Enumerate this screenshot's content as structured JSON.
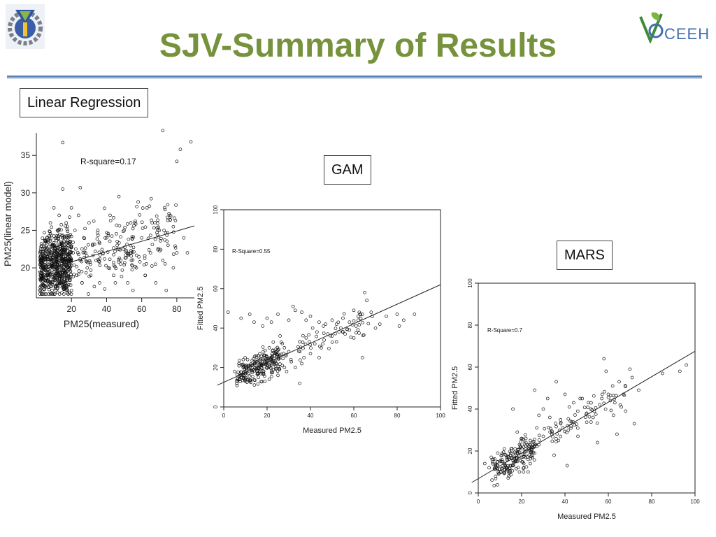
{
  "slide": {
    "title": "SJV-Summary of Results",
    "logo_right_text": "CEEH"
  },
  "colors": {
    "title": "#76923c",
    "rule": "#5b82b5"
  },
  "labels": {
    "lr": "Linear Regression",
    "gam": "GAM",
    "mars": "MARS"
  },
  "chart_data": [
    {
      "id": "lr",
      "type": "scatter",
      "title": "",
      "annotation": "R-square=0.17",
      "xlabel": "PM25(measured)",
      "ylabel": "PM25(linear model)",
      "xlim": [
        0,
        90
      ],
      "ylim": [
        16,
        38
      ],
      "xticks": [
        20,
        40,
        60,
        80
      ],
      "yticks": [
        20,
        25,
        30,
        35
      ],
      "fit_line": [
        [
          1,
          19.5
        ],
        [
          90,
          25.6
        ]
      ],
      "n_points": 900,
      "points": [
        [
          2,
          17
        ],
        [
          3,
          18.5
        ],
        [
          4,
          20
        ],
        [
          5,
          22
        ],
        [
          5,
          17.5
        ],
        [
          6,
          24
        ],
        [
          7,
          19
        ],
        [
          8,
          21
        ],
        [
          8,
          26
        ],
        [
          9,
          17
        ],
        [
          10,
          23
        ],
        [
          10,
          28
        ],
        [
          11,
          20
        ],
        [
          12,
          18
        ],
        [
          12,
          25
        ],
        [
          13,
          22
        ],
        [
          13,
          27
        ],
        [
          14,
          19
        ],
        [
          15,
          24
        ],
        [
          15,
          30.5
        ],
        [
          16,
          21
        ],
        [
          17,
          17.5
        ],
        [
          17,
          26
        ],
        [
          18,
          23
        ],
        [
          19,
          20
        ],
        [
          20,
          28
        ],
        [
          20,
          17
        ],
        [
          21,
          22
        ],
        [
          22,
          25
        ],
        [
          23,
          19
        ],
        [
          24,
          27
        ],
        [
          25,
          21
        ],
        [
          25,
          30.7
        ],
        [
          26,
          18
        ],
        [
          27,
          24
        ],
        [
          28,
          22
        ],
        [
          29,
          20
        ],
        [
          30,
          26
        ],
        [
          31,
          19
        ],
        [
          32,
          23
        ],
        [
          33,
          17.5
        ],
        [
          34,
          21
        ],
        [
          35,
          25
        ],
        [
          36,
          18
        ],
        [
          38,
          22
        ],
        [
          40,
          24
        ],
        [
          41,
          20
        ],
        [
          42,
          27
        ],
        [
          44,
          19
        ],
        [
          46,
          23
        ],
        [
          47,
          29.5
        ],
        [
          48,
          21
        ],
        [
          50,
          25
        ],
        [
          52,
          18
        ],
        [
          54,
          22
        ],
        [
          56,
          26
        ],
        [
          57,
          20
        ],
        [
          58,
          28.8
        ],
        [
          60,
          24
        ],
        [
          62,
          19
        ],
        [
          63,
          28
        ],
        [
          65,
          22
        ],
        [
          66,
          26
        ],
        [
          68,
          18
        ],
        [
          70,
          25
        ],
        [
          72,
          21
        ],
        [
          74,
          17
        ],
        [
          75,
          23
        ],
        [
          76,
          27
        ],
        [
          78,
          20
        ],
        [
          80,
          34.2
        ],
        [
          80,
          22
        ],
        [
          82,
          35.8
        ],
        [
          84,
          24
        ],
        [
          86,
          22
        ],
        [
          88,
          36.8
        ],
        [
          72,
          38.3
        ],
        [
          15,
          36.7
        ],
        [
          62,
          19
        ],
        [
          55,
          17
        ],
        [
          45,
          18
        ]
      ]
    },
    {
      "id": "gam",
      "type": "scatter",
      "title": "",
      "annotation": "R-Square=0.55",
      "xlabel": "Measured PM2.5",
      "ylabel": "Fitted PM2.5",
      "xlim": [
        0,
        100
      ],
      "ylim": [
        0,
        100
      ],
      "xticks": [
        0,
        20,
        40,
        60,
        80,
        100
      ],
      "yticks": [
        0,
        20,
        40,
        60,
        80,
        100
      ],
      "fit_line": [
        [
          -3,
          11
        ],
        [
          104,
          64
        ]
      ],
      "n_points": 350,
      "points": [
        [
          2,
          48
        ],
        [
          8,
          45
        ],
        [
          12,
          47
        ],
        [
          14,
          43
        ],
        [
          18,
          41
        ],
        [
          20,
          45
        ],
        [
          22,
          43
        ],
        [
          25,
          47
        ],
        [
          30,
          44
        ],
        [
          32,
          51
        ],
        [
          33,
          49
        ],
        [
          36,
          48
        ],
        [
          38,
          44
        ],
        [
          40,
          46
        ],
        [
          44,
          43
        ],
        [
          47,
          42
        ],
        [
          50,
          44
        ],
        [
          52,
          42
        ],
        [
          55,
          45
        ],
        [
          58,
          43
        ],
        [
          60,
          49
        ],
        [
          62,
          46
        ],
        [
          64,
          47
        ],
        [
          65,
          58
        ],
        [
          66,
          54
        ],
        [
          68,
          48
        ],
        [
          72,
          42
        ],
        [
          75,
          46
        ],
        [
          80,
          47
        ],
        [
          81,
          41
        ],
        [
          83,
          44
        ],
        [
          88,
          47
        ],
        [
          64,
          25
        ],
        [
          70,
          40
        ],
        [
          60,
          35
        ],
        [
          55,
          38
        ],
        [
          50,
          36
        ],
        [
          45,
          30
        ],
        [
          42,
          32
        ],
        [
          40,
          27
        ],
        [
          38,
          35
        ],
        [
          35,
          33
        ],
        [
          30,
          28
        ],
        [
          28,
          30
        ],
        [
          26,
          36
        ],
        [
          24,
          22
        ],
        [
          22,
          25
        ],
        [
          20,
          20
        ],
        [
          18,
          17
        ],
        [
          16,
          15
        ],
        [
          14,
          19
        ],
        [
          12,
          13
        ],
        [
          10,
          17
        ],
        [
          8,
          15
        ],
        [
          6,
          12
        ],
        [
          5,
          18
        ],
        [
          7,
          22
        ],
        [
          9,
          20
        ],
        [
          11,
          24
        ],
        [
          13,
          21
        ],
        [
          15,
          26
        ],
        [
          17,
          18
        ],
        [
          19,
          23
        ],
        [
          21,
          14
        ],
        [
          23,
          19
        ],
        [
          25,
          16
        ],
        [
          27,
          21
        ],
        [
          29,
          18
        ],
        [
          31,
          24
        ],
        [
          33,
          20
        ],
        [
          35,
          12
        ],
        [
          37,
          25
        ],
        [
          41,
          40
        ],
        [
          43,
          38
        ],
        [
          46,
          41
        ],
        [
          48,
          37
        ],
        [
          52,
          33
        ],
        [
          54,
          40
        ],
        [
          56,
          37
        ],
        [
          58,
          39
        ],
        [
          61,
          41
        ],
        [
          9,
          24
        ],
        [
          10,
          13
        ],
        [
          16,
          26
        ],
        [
          19,
          13
        ],
        [
          21,
          30
        ],
        [
          24,
          27
        ],
        [
          28,
          20
        ],
        [
          36,
          22
        ],
        [
          44,
          25
        ]
      ]
    },
    {
      "id": "mars",
      "type": "scatter",
      "title": "",
      "annotation": "R-Square=0.7",
      "xlabel": "Measured PM2.5",
      "ylabel": "Fitted PM2.5",
      "xlim": [
        0,
        100
      ],
      "ylim": [
        0,
        100
      ],
      "xticks": [
        0,
        20,
        40,
        60,
        80,
        100
      ],
      "yticks": [
        0,
        20,
        40,
        60,
        80,
        100
      ],
      "fit_line": [
        [
          -3,
          5
        ],
        [
          104,
          70
        ]
      ],
      "n_points": 300,
      "points": [
        [
          3,
          14
        ],
        [
          5,
          12
        ],
        [
          7,
          16
        ],
        [
          8,
          13
        ],
        [
          10,
          15
        ],
        [
          11,
          18
        ],
        [
          12,
          14
        ],
        [
          13,
          11
        ],
        [
          14,
          17
        ],
        [
          15,
          19
        ],
        [
          16,
          13
        ],
        [
          17,
          21
        ],
        [
          18,
          15
        ],
        [
          19,
          23
        ],
        [
          20,
          17
        ],
        [
          21,
          12
        ],
        [
          22,
          20
        ],
        [
          23,
          16
        ],
        [
          24,
          25
        ],
        [
          25,
          22
        ],
        [
          26,
          49
        ],
        [
          27,
          31
        ],
        [
          28,
          37
        ],
        [
          30,
          40
        ],
        [
          32,
          45
        ],
        [
          34,
          29
        ],
        [
          35,
          18
        ],
        [
          36,
          53
        ],
        [
          38,
          33
        ],
        [
          40,
          47
        ],
        [
          41,
          13
        ],
        [
          42,
          41
        ],
        [
          44,
          43
        ],
        [
          46,
          27
        ],
        [
          47,
          45
        ],
        [
          50,
          38
        ],
        [
          52,
          40
        ],
        [
          55,
          24
        ],
        [
          56,
          42
        ],
        [
          58,
          64
        ],
        [
          59,
          58
        ],
        [
          60,
          47
        ],
        [
          62,
          51
        ],
        [
          64,
          28
        ],
        [
          65,
          53
        ],
        [
          66,
          41
        ],
        [
          68,
          39
        ],
        [
          70,
          59
        ],
        [
          71,
          55
        ],
        [
          72,
          33
        ],
        [
          74,
          49
        ],
        [
          85,
          57
        ],
        [
          93,
          58
        ],
        [
          96,
          61
        ],
        [
          16,
          40
        ],
        [
          12,
          21
        ],
        [
          14,
          10
        ],
        [
          18,
          29
        ],
        [
          20,
          26
        ],
        [
          22,
          24
        ],
        [
          24,
          14
        ],
        [
          26,
          19
        ],
        [
          28,
          23
        ],
        [
          30,
          27
        ],
        [
          33,
          36
        ],
        [
          37,
          25
        ],
        [
          39,
          31
        ],
        [
          43,
          34
        ],
        [
          48,
          45
        ],
        [
          53,
          36
        ],
        [
          57,
          45
        ],
        [
          63,
          43
        ],
        [
          67,
          47
        ],
        [
          9,
          19
        ],
        [
          13,
          17
        ],
        [
          17,
          15
        ],
        [
          19,
          10
        ],
        [
          21,
          14
        ],
        [
          23,
          10
        ],
        [
          15,
          13
        ],
        [
          11,
          12
        ],
        [
          6,
          17
        ]
      ]
    }
  ]
}
